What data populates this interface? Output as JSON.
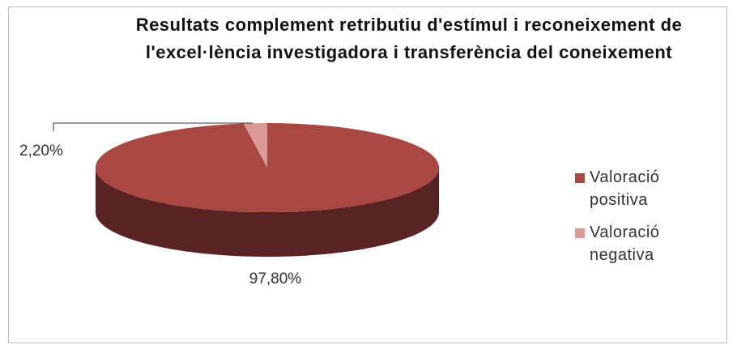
{
  "chart_data": {
    "type": "pie3d",
    "title": "Resultats complement retributiu d'estímul i reconeixement de  l'excel·lència investigadora i transferència del coneixement",
    "series": [
      {
        "name": "Valoració positiva",
        "color": "#a94843",
        "values": [
          97.8
        ],
        "value_labels": [
          "97,80%"
        ]
      },
      {
        "name": "Valoració negativa",
        "color": "#d99a98",
        "values": [
          2.2
        ],
        "value_labels": [
          "2,20%"
        ]
      }
    ],
    "side_color": "#5a2323"
  }
}
